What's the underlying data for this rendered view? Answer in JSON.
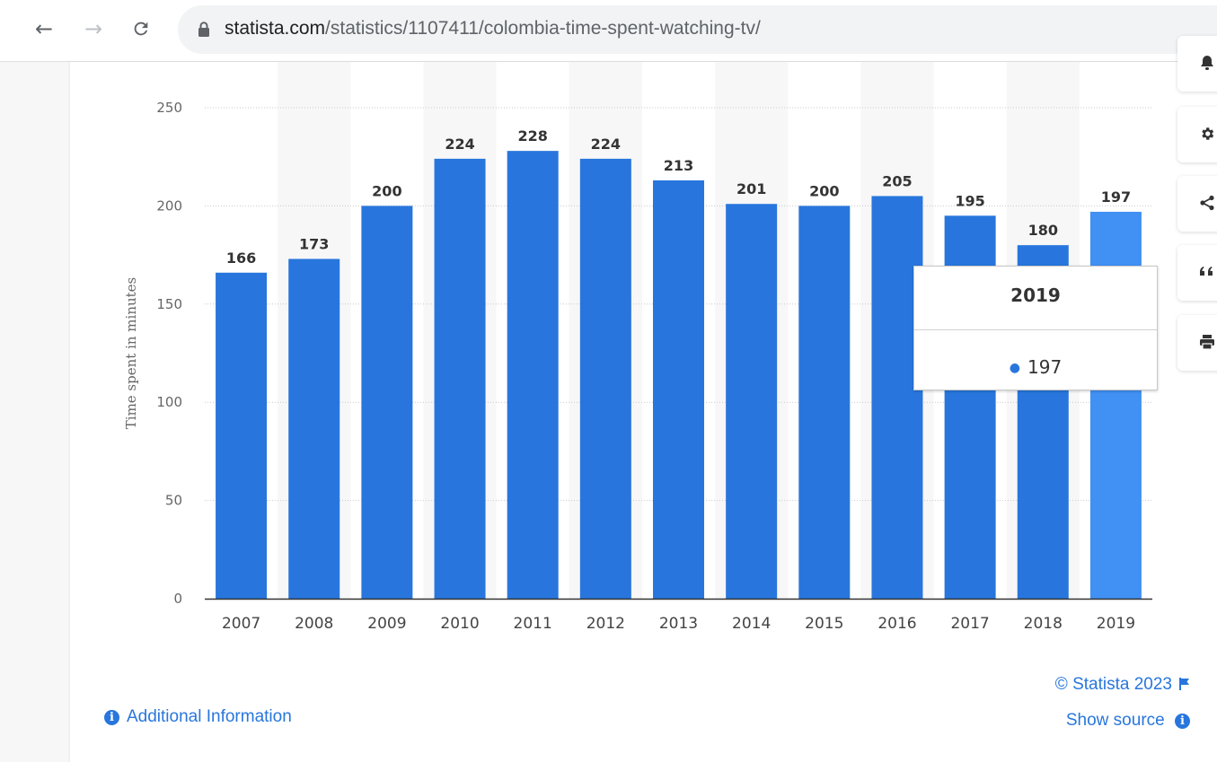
{
  "browser": {
    "url_domain": "statista.com",
    "url_path": "/statistics/1107411/colombia-time-spent-watching-tv/"
  },
  "colors": {
    "bar": "#2876dd",
    "bar_highlight": "#4190f4",
    "link": "#2876dd"
  },
  "sidebar_icons": [
    "bell-icon",
    "gear-icon",
    "share-icon",
    "quote-icon",
    "print-icon"
  ],
  "tooltip": {
    "title": "2019",
    "value": "197"
  },
  "footer": {
    "copyright": "© Statista 2023",
    "show_source": "Show source",
    "additional_info": "Additional Information"
  },
  "chart_data": {
    "type": "bar",
    "categories": [
      "2007",
      "2008",
      "2009",
      "2010",
      "2011",
      "2012",
      "2013",
      "2014",
      "2015",
      "2016",
      "2017",
      "2018",
      "2019"
    ],
    "values": [
      166,
      173,
      200,
      224,
      228,
      224,
      213,
      201,
      200,
      205,
      195,
      180,
      197
    ],
    "ylabel": "Time spent in minutes",
    "ylim": [
      0,
      250
    ],
    "yticks": [
      0,
      50,
      100,
      150,
      200,
      250
    ],
    "highlighted_category": "2019",
    "grid": true,
    "alternating_column_shading": true
  }
}
